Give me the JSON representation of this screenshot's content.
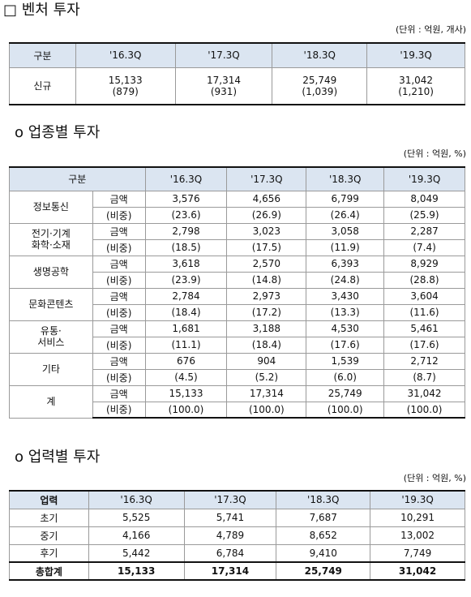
{
  "venture": {
    "title": "□ 벤처 투자",
    "unit": "(단위 : 억원, 개사)",
    "headers": [
      "구분",
      "'16.3Q",
      "'17.3Q",
      "'18.3Q",
      "'19.3Q"
    ],
    "row_label": "신규",
    "amounts": [
      "15,133",
      "17,314",
      "25,749",
      "31,042"
    ],
    "counts": [
      "(879)",
      "(931)",
      "(1,039)",
      "(1,210)"
    ]
  },
  "industry": {
    "title": "o 업종별 투자",
    "unit": "(단위 : 억원, %)",
    "headers": [
      "구분",
      "'16.3Q",
      "'17.3Q",
      "'18.3Q",
      "'19.3Q"
    ],
    "metric_labels": [
      "금액",
      "(비중)"
    ],
    "groups": [
      {
        "label_lines": [
          "정보통신"
        ],
        "amount": [
          "3,576",
          "4,656",
          "6,799",
          "8,049"
        ],
        "share": [
          "(23.6)",
          "(26.9)",
          "(26.4)",
          "(25.9)"
        ]
      },
      {
        "label_lines": [
          "전기·기계",
          "화학·소재"
        ],
        "amount": [
          "2,798",
          "3,023",
          "3,058",
          "2,287"
        ],
        "share": [
          "(18.5)",
          "(17.5)",
          "(11.9)",
          "(7.4)"
        ]
      },
      {
        "label_lines": [
          "생명공학"
        ],
        "amount": [
          "3,618",
          "2,570",
          "6,393",
          "8,929"
        ],
        "share": [
          "(23.9)",
          "(14.8)",
          "(24.8)",
          "(28.8)"
        ]
      },
      {
        "label_lines": [
          "문화콘텐츠"
        ],
        "amount": [
          "2,784",
          "2,973",
          "3,430",
          "3,604"
        ],
        "share": [
          "(18.4)",
          "(17.2)",
          "(13.3)",
          "(11.6)"
        ]
      },
      {
        "label_lines": [
          "유통·",
          "서비스"
        ],
        "amount": [
          "1,681",
          "3,188",
          "4,530",
          "5,461"
        ],
        "share": [
          "(11.1)",
          "(18.4)",
          "(17.6)",
          "(17.6)"
        ]
      },
      {
        "label_lines": [
          "기타"
        ],
        "amount": [
          "676",
          "904",
          "1,539",
          "2,712"
        ],
        "share": [
          "(4.5)",
          "(5.2)",
          "(6.0)",
          "(8.7)"
        ]
      },
      {
        "label_lines": [
          "계"
        ],
        "amount": [
          "15,133",
          "17,314",
          "25,749",
          "31,042"
        ],
        "share": [
          "(100.0)",
          "(100.0)",
          "(100.0)",
          "(100.0)"
        ]
      }
    ]
  },
  "stage": {
    "title": "o 업력별 투자",
    "unit": "(단위 : 억원, %)",
    "headers": [
      "업력",
      "'16.3Q",
      "'17.3Q",
      "'18.3Q",
      "'19.3Q"
    ],
    "rows": [
      {
        "label": "초기",
        "values": [
          "5,525",
          "5,741",
          "7,687",
          "10,291"
        ]
      },
      {
        "label": "중기",
        "values": [
          "4,166",
          "4,789",
          "8,652",
          "13,002"
        ]
      },
      {
        "label": "후기",
        "values": [
          "5,442",
          "6,784",
          "9,410",
          "7,749"
        ]
      },
      {
        "label": "총합계",
        "values": [
          "15,133",
          "17,314",
          "25,749",
          "31,042"
        ]
      }
    ]
  }
}
